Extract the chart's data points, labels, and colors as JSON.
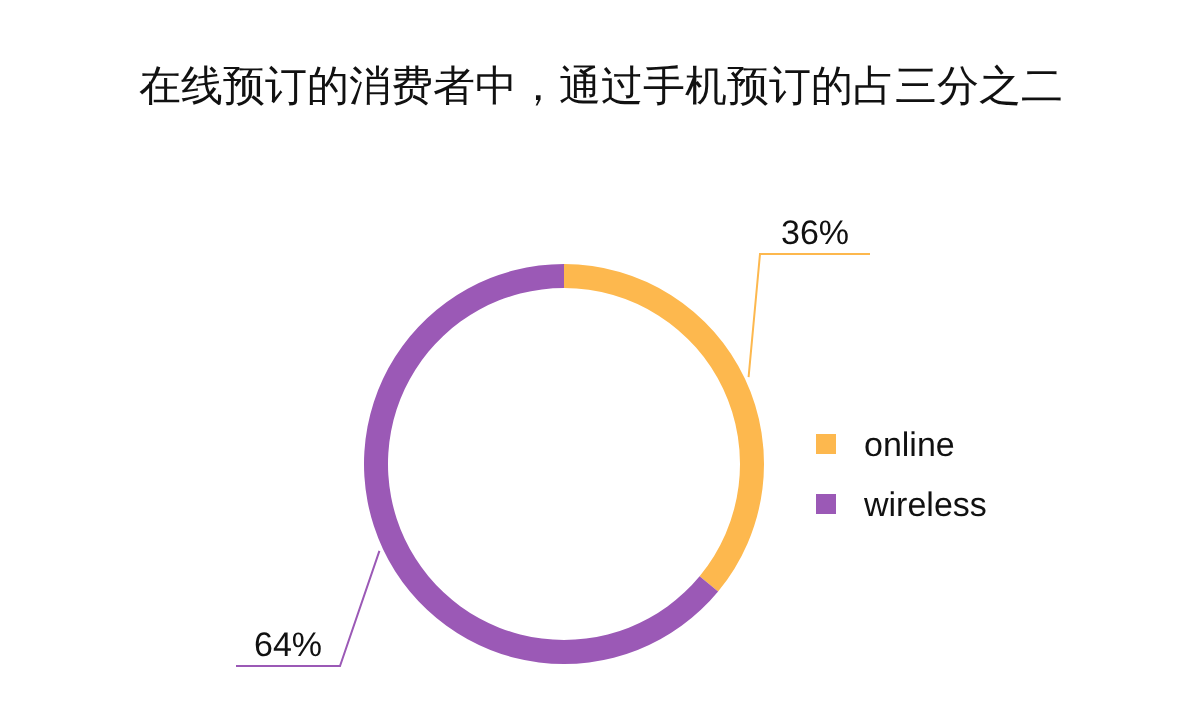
{
  "chart_data": {
    "type": "donut",
    "title": "在线预订的消费者中，通过手机预订的占三分之二",
    "categories": [
      "online",
      "wireless"
    ],
    "values": [
      36,
      64
    ],
    "colors": [
      "#fdb84e",
      "#9b59b6"
    ],
    "value_labels": [
      "36%",
      "64%"
    ],
    "legend": "right"
  }
}
